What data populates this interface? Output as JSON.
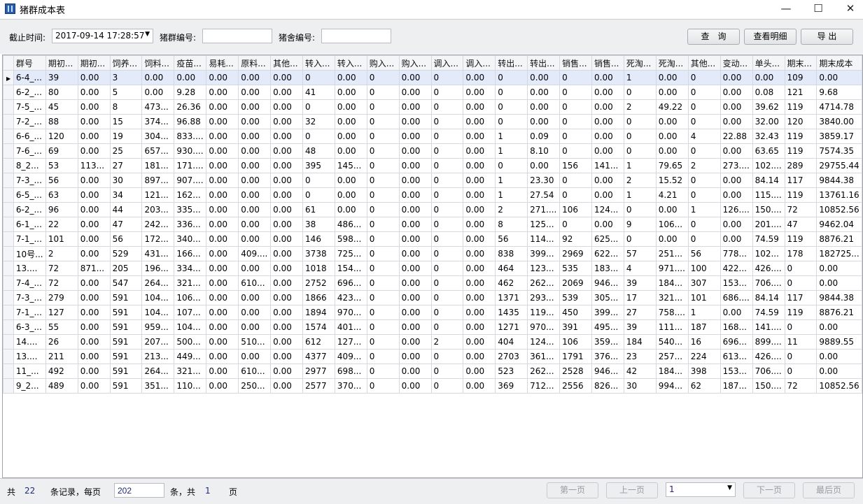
{
  "window": {
    "title": "猪群成本表",
    "icons": {
      "app": "app-icon",
      "minimize": "minimize-icon",
      "maximize": "maximize-icon",
      "close": "close-icon"
    }
  },
  "filters": {
    "deadline_label": "截止时间:",
    "deadline_value": "2017-09-14 17:28:57",
    "herd_no_label": "猪群编号:",
    "herd_no_value": "",
    "barn_no_label": "猪舍编号:",
    "barn_no_value": ""
  },
  "buttons": {
    "query": "查　询",
    "detail": "查看明细",
    "export": "导 出"
  },
  "table": {
    "columns": [
      "群号",
      "期初...",
      "期初...",
      "饲养...",
      "饲料...",
      "疫苗...",
      "易耗...",
      "原料...",
      "其他...",
      "转入...",
      "转入...",
      "购入...",
      "购入...",
      "调入...",
      "调入...",
      "转出...",
      "转出...",
      "销售...",
      "销售...",
      "死淘...",
      "死淘...",
      "其他...",
      "变动...",
      "单头...",
      "期末...",
      "期末成本"
    ],
    "selected_row": 0,
    "rows": [
      [
        "6-4_...",
        "39",
        "0.00",
        "3",
        "0.00",
        "0.00",
        "0.00",
        "0.00",
        "0.00",
        "0",
        "0.00",
        "0",
        "0.00",
        "0",
        "0.00",
        "0",
        "0.00",
        "0",
        "0.00",
        "1",
        "0.00",
        "0",
        "0.00",
        "0.00",
        "109",
        "0.00"
      ],
      [
        "6-2_...",
        "80",
        "0.00",
        "5",
        "0.00",
        "9.28",
        "0.00",
        "0.00",
        "0.00",
        "41",
        "0.00",
        "0",
        "0.00",
        "0",
        "0.00",
        "0",
        "0.00",
        "0",
        "0.00",
        "0",
        "0.00",
        "0",
        "0.00",
        "0.08",
        "121",
        "9.68"
      ],
      [
        "7-5_...",
        "45",
        "0.00",
        "8",
        "473...",
        "26.36",
        "0.00",
        "0.00",
        "0.00",
        "0",
        "0.00",
        "0",
        "0.00",
        "0",
        "0.00",
        "0",
        "0.00",
        "0",
        "0.00",
        "2",
        "49.22",
        "0",
        "0.00",
        "39.62",
        "119",
        "4714.78"
      ],
      [
        "7-2_...",
        "88",
        "0.00",
        "15",
        "374...",
        "96.88",
        "0.00",
        "0.00",
        "0.00",
        "32",
        "0.00",
        "0",
        "0.00",
        "0",
        "0.00",
        "0",
        "0.00",
        "0",
        "0.00",
        "0",
        "0.00",
        "0",
        "0.00",
        "32.00",
        "120",
        "3840.00"
      ],
      [
        "6-6_...",
        "120",
        "0.00",
        "19",
        "304...",
        "833....",
        "0.00",
        "0.00",
        "0.00",
        "0",
        "0.00",
        "0",
        "0.00",
        "0",
        "0.00",
        "1",
        "0.09",
        "0",
        "0.00",
        "0",
        "0.00",
        "4",
        "22.88",
        "32.43",
        "119",
        "3859.17"
      ],
      [
        "7-6_...",
        "69",
        "0.00",
        "25",
        "657...",
        "930....",
        "0.00",
        "0.00",
        "0.00",
        "48",
        "0.00",
        "0",
        "0.00",
        "0",
        "0.00",
        "1",
        "8.10",
        "0",
        "0.00",
        "0",
        "0.00",
        "0",
        "0.00",
        "63.65",
        "119",
        "7574.35"
      ],
      [
        "8_2...",
        "53",
        "113...",
        "27",
        "181...",
        "171....",
        "0.00",
        "0.00",
        "0.00",
        "395",
        "145...",
        "0",
        "0.00",
        "0",
        "0.00",
        "0",
        "0.00",
        "156",
        "141...",
        "1",
        "79.65",
        "2",
        "273....",
        "102....",
        "289",
        "29755.44"
      ],
      [
        "7-3_...",
        "56",
        "0.00",
        "30",
        "897...",
        "907....",
        "0.00",
        "0.00",
        "0.00",
        "0",
        "0.00",
        "0",
        "0.00",
        "0",
        "0.00",
        "1",
        "23.30",
        "0",
        "0.00",
        "2",
        "15.52",
        "0",
        "0.00",
        "84.14",
        "117",
        "9844.38"
      ],
      [
        "6-5_...",
        "63",
        "0.00",
        "34",
        "121...",
        "162...",
        "0.00",
        "0.00",
        "0.00",
        "0",
        "0.00",
        "0",
        "0.00",
        "0",
        "0.00",
        "1",
        "27.54",
        "0",
        "0.00",
        "1",
        "4.21",
        "0",
        "0.00",
        "115....",
        "119",
        "13761.16"
      ],
      [
        "6-2_...",
        "96",
        "0.00",
        "44",
        "203...",
        "335...",
        "0.00",
        "0.00",
        "0.00",
        "61",
        "0.00",
        "0",
        "0.00",
        "0",
        "0.00",
        "2",
        "271....",
        "106",
        "124...",
        "0",
        "0.00",
        "1",
        "126....",
        "150....",
        "72",
        "10852.56"
      ],
      [
        "6-1_...",
        "22",
        "0.00",
        "47",
        "242...",
        "336...",
        "0.00",
        "0.00",
        "0.00",
        "38",
        "486...",
        "0",
        "0.00",
        "0",
        "0.00",
        "8",
        "125...",
        "0",
        "0.00",
        "9",
        "106...",
        "0",
        "0.00",
        "201....",
        "47",
        "9462.04"
      ],
      [
        "7-1_...",
        "101",
        "0.00",
        "56",
        "172...",
        "340...",
        "0.00",
        "0.00",
        "0.00",
        "146",
        "598...",
        "0",
        "0.00",
        "0",
        "0.00",
        "56",
        "114...",
        "92",
        "625...",
        "0",
        "0.00",
        "0",
        "0.00",
        "74.59",
        "119",
        "8876.21"
      ],
      [
        "10号...",
        "2",
        "0.00",
        "529",
        "431...",
        "166...",
        "0.00",
        "409....",
        "0.00",
        "3738",
        "725...",
        "0",
        "0.00",
        "0",
        "0.00",
        "838",
        "399...",
        "2969",
        "622...",
        "57",
        "251...",
        "56",
        "778...",
        "102...",
        "178",
        "182725..."
      ],
      [
        "13....",
        "72",
        "871...",
        "205",
        "196...",
        "334...",
        "0.00",
        "0.00",
        "0.00",
        "1018",
        "154...",
        "0",
        "0.00",
        "0",
        "0.00",
        "464",
        "123...",
        "535",
        "183...",
        "4",
        "971....",
        "100",
        "422...",
        "426....",
        "0",
        "0.00"
      ],
      [
        "7-4_...",
        "72",
        "0.00",
        "547",
        "264...",
        "321...",
        "0.00",
        "610...",
        "0.00",
        "2752",
        "696...",
        "0",
        "0.00",
        "0",
        "0.00",
        "462",
        "262...",
        "2069",
        "946...",
        "39",
        "184...",
        "307",
        "153...",
        "706....",
        "0",
        "0.00"
      ],
      [
        "7-3_...",
        "279",
        "0.00",
        "591",
        "104...",
        "106...",
        "0.00",
        "0.00",
        "0.00",
        "1866",
        "423...",
        "0",
        "0.00",
        "0",
        "0.00",
        "1371",
        "293...",
        "539",
        "305...",
        "17",
        "321...",
        "101",
        "686....",
        "84.14",
        "117",
        "9844.38"
      ],
      [
        "7-1_...",
        "127",
        "0.00",
        "591",
        "104...",
        "107...",
        "0.00",
        "0.00",
        "0.00",
        "1894",
        "970...",
        "0",
        "0.00",
        "0",
        "0.00",
        "1435",
        "119...",
        "450",
        "399...",
        "27",
        "758....",
        "1",
        "0.00",
        "74.59",
        "119",
        "8876.21"
      ],
      [
        "6-3_...",
        "55",
        "0.00",
        "591",
        "959...",
        "104...",
        "0.00",
        "0.00",
        "0.00",
        "1574",
        "401...",
        "0",
        "0.00",
        "0",
        "0.00",
        "1271",
        "970...",
        "391",
        "495...",
        "39",
        "111...",
        "187",
        "168...",
        "141....",
        "0",
        "0.00"
      ],
      [
        "14....",
        "26",
        "0.00",
        "591",
        "207...",
        "500...",
        "0.00",
        "510...",
        "0.00",
        "612",
        "127...",
        "0",
        "0.00",
        "2",
        "0.00",
        "404",
        "124...",
        "106",
        "359...",
        "184",
        "540...",
        "16",
        "696...",
        "899....",
        "11",
        "9889.55"
      ],
      [
        "13....",
        "211",
        "0.00",
        "591",
        "213...",
        "449...",
        "0.00",
        "0.00",
        "0.00",
        "4377",
        "409...",
        "0",
        "0.00",
        "0",
        "0.00",
        "2703",
        "361...",
        "1791",
        "376...",
        "23",
        "257...",
        "224",
        "613...",
        "426....",
        "0",
        "0.00"
      ],
      [
        "11_...",
        "492",
        "0.00",
        "591",
        "264...",
        "321...",
        "0.00",
        "610...",
        "0.00",
        "2977",
        "698...",
        "0",
        "0.00",
        "0",
        "0.00",
        "523",
        "262...",
        "2528",
        "946...",
        "42",
        "184...",
        "398",
        "153...",
        "706....",
        "0",
        "0.00"
      ],
      [
        "9_2...",
        "489",
        "0.00",
        "591",
        "351...",
        "110...",
        "0.00",
        "250...",
        "0.00",
        "2577",
        "370...",
        "0",
        "0.00",
        "0",
        "0.00",
        "369",
        "712...",
        "2556",
        "826...",
        "30",
        "994...",
        "62",
        "187...",
        "150....",
        "72",
        "10852.56"
      ]
    ]
  },
  "footer": {
    "total_prefix": "共",
    "total_records": "22",
    "records_per_page_label": "条记录，每页",
    "page_size": "202",
    "pages_label": "条，共",
    "total_pages": "1",
    "page_suffix": "页",
    "first": "第一页",
    "prev": "上一页",
    "current_page": "1",
    "next": "下一页",
    "last": "最后页"
  }
}
